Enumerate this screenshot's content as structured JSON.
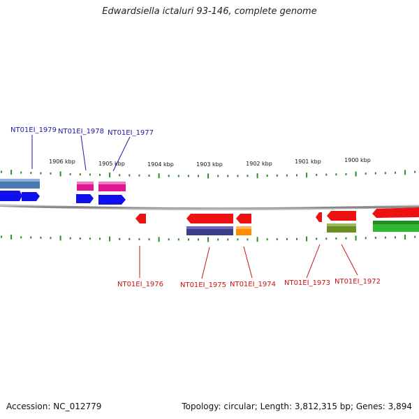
{
  "title": "Edwardsiella ictaluri 93-146, complete genome",
  "footer": {
    "accession": "Accession: NC_012779",
    "summary": "Topology: circular; Length: 3,812,315 bp; Genes: 3,894"
  },
  "colors": {
    "backbone": "#8a8a8a",
    "ticks": "#2e8b2e",
    "label_top": "#1a1aa6",
    "label_bottom": "#cc1111",
    "forward_blue": "#1010ee",
    "forward_pink": "#e01890",
    "forward_steel": "#4a78b0",
    "reverse_red": "#ee1111",
    "reverse_navy": "#3c3c88",
    "reverse_orange": "#ff8c00",
    "reverse_olive": "#6b8e23",
    "reverse_green": "#2fb82f"
  },
  "scale_labels": [
    "1906 kbp",
    "1905 kbp",
    "1904 kbp",
    "1903 kbp",
    "1902 kbp",
    "1901 kbp",
    "1900 kbp"
  ],
  "gene_labels_top": [
    "NT01EI_1979",
    "NT01EI_1978",
    "NT01EI_1977"
  ],
  "gene_labels_bottom": [
    "NT01EI_1976",
    "NT01EI_1975",
    "NT01EI_1974",
    "NT01EI_1973",
    "NT01EI_1972"
  ]
}
